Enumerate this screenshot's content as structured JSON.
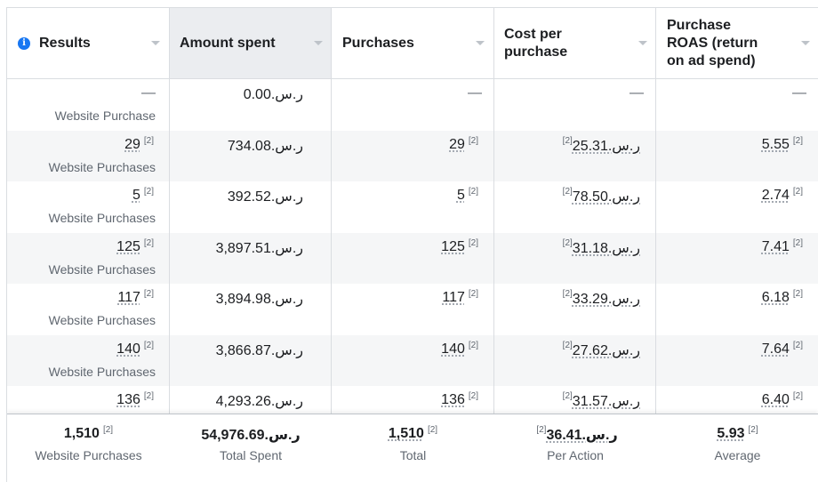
{
  "columns": [
    {
      "label": "Results",
      "info": "i"
    },
    {
      "label": "Amount spent"
    },
    {
      "label": "Purchases"
    },
    {
      "label": "Cost per purchase"
    },
    {
      "label": "Purchase ROAS (return on ad spend)"
    }
  ],
  "rows": [
    {
      "results": "—",
      "results_sub": "Website Purchase",
      "spent": "ر.س.0.00",
      "purchases": "—",
      "cpp": "—",
      "roas": "—",
      "results_note": "",
      "purchases_note": "",
      "cpp_note": "",
      "roas_note": ""
    },
    {
      "results": "29",
      "results_note": "[2]",
      "results_sub": "Website Purchases",
      "spent": "ر.س.734.08",
      "purchases": "29",
      "purchases_note": "[2]",
      "cpp": "ر.س.25.31",
      "cpp_note": "[2]",
      "roas": "5.55",
      "roas_note": "[2]"
    },
    {
      "results": "5",
      "results_note": "[2]",
      "results_sub": "Website Purchases",
      "spent": "ر.س.392.52",
      "purchases": "5",
      "purchases_note": "[2]",
      "cpp": "ر.س.78.50",
      "cpp_note": "[2]",
      "roas": "2.74",
      "roas_note": "[2]"
    },
    {
      "results": "125",
      "results_note": "[2]",
      "results_sub": "Website Purchases",
      "spent": "ر.س.3,897.51",
      "purchases": "125",
      "purchases_note": "[2]",
      "cpp": "ر.س.31.18",
      "cpp_note": "[2]",
      "roas": "7.41",
      "roas_note": "[2]"
    },
    {
      "results": "117",
      "results_note": "[2]",
      "results_sub": "Website Purchases",
      "spent": "ر.س.3,894.98",
      "purchases": "117",
      "purchases_note": "[2]",
      "cpp": "ر.س.33.29",
      "cpp_note": "[2]",
      "roas": "6.18",
      "roas_note": "[2]"
    },
    {
      "results": "140",
      "results_note": "[2]",
      "results_sub": "Website Purchases",
      "spent": "ر.س.3,866.87",
      "purchases": "140",
      "purchases_note": "[2]",
      "cpp": "ر.س.27.62",
      "cpp_note": "[2]",
      "roas": "7.64",
      "roas_note": "[2]"
    },
    {
      "results": "136",
      "results_note": "[2]",
      "results_sub": "",
      "spent": "ر.س.4,293.26",
      "purchases": "136",
      "purchases_note": "[2]",
      "cpp": "ر.س.31.57",
      "cpp_note": "[2]",
      "roas": "6.40",
      "roas_note": "[2]"
    }
  ],
  "summary": {
    "results": "1,510",
    "results_note": "[2]",
    "results_sub": "Website Purchases",
    "spent": "ر.س.54,976.69",
    "spent_sub": "Total Spent",
    "purchases": "1,510",
    "purchases_note": "[2]",
    "purchases_sub": "Total",
    "cpp": "ر.س.36.41",
    "cpp_note": "[2]",
    "cpp_sub": "Per Action",
    "roas": "5.93",
    "roas_note": "[2]",
    "roas_sub": "Average"
  },
  "colors": {
    "info_icon": "#1877f2",
    "sorted_header_bg": "#ebedf0",
    "alt_row_bg": "#f5f6f7"
  }
}
